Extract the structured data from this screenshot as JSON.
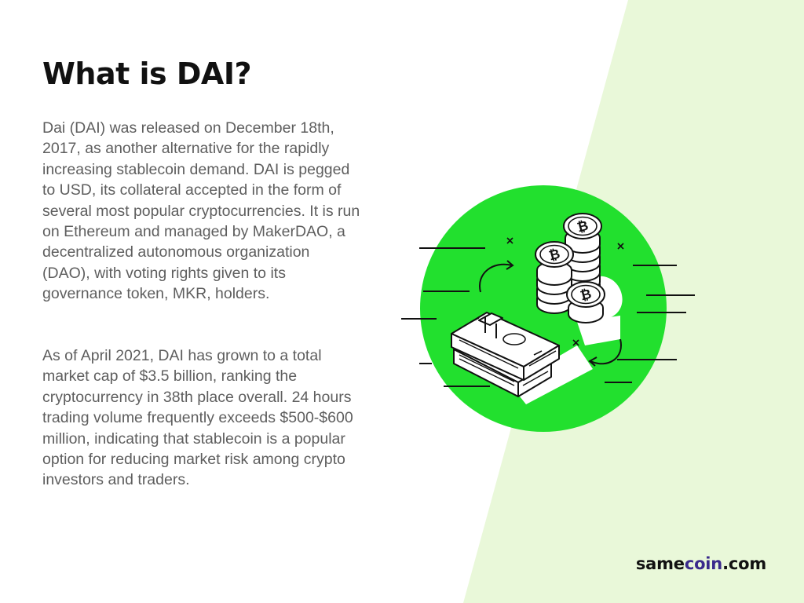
{
  "page": {
    "title": "What is DAI?",
    "paragraphs": [
      "Dai (DAI) was released on December 18th, 2017, as another alternative for the rapidly increasing stablecoin demand. DAI is pegged to USD, its collateral accepted in the form of several most popular cryptocurrencies. It is run on Ethereum and managed by MakerDAO, a decentralized autonomous organization (DAO), with voting rights given to its governance token, MKR, holders.",
      "As of April 2021, DAI has grown to a total market cap of $3.5 billion, ranking the cryptocurrency in 38th place overall. 24 hours trading volume frequently exceeds $500-$600 million, indicating that stablecoin is a popular option for reducing market risk among crypto investors and traders."
    ]
  },
  "brand": {
    "prefix": "same",
    "accent": "coin",
    "suffix": ".com"
  },
  "colors": {
    "background": "#ffffff",
    "diagonal_panel": "#e9f8d9",
    "circle": "#22e02e",
    "brand_accent": "#3a2a8c",
    "heading": "#111111",
    "body_text": "#5e5e5e"
  },
  "illustration": {
    "icons": [
      "bitcoin-coin-stack-icon",
      "cash-bundle-icon",
      "circular-arrow-icon"
    ]
  }
}
